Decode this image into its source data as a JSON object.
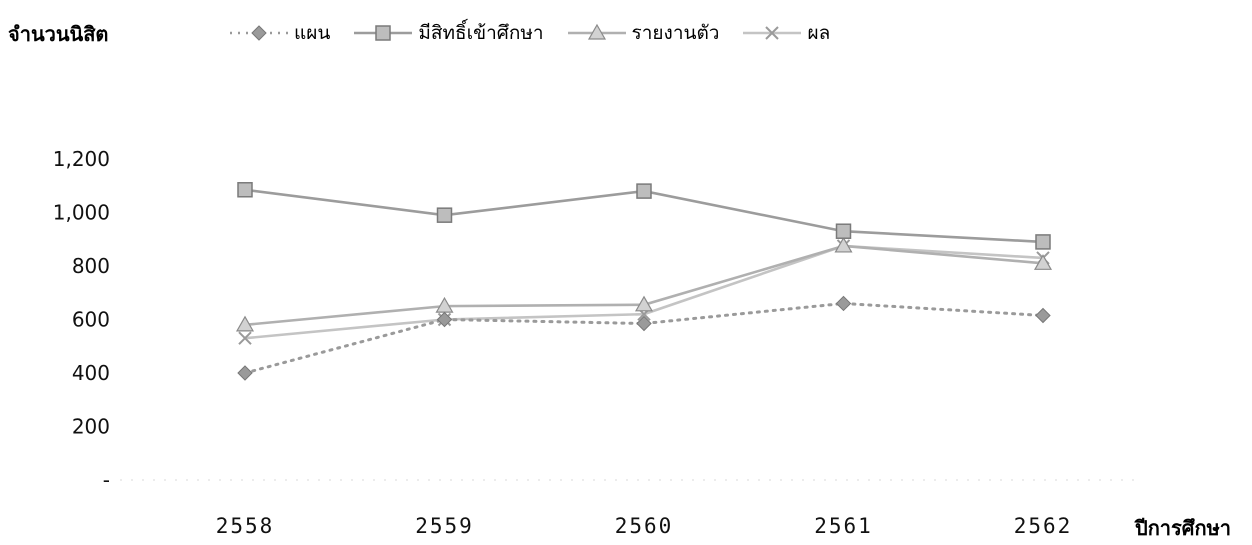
{
  "chart_data": {
    "type": "line",
    "ylabel": "จำนวนนิสิต",
    "xlabel": "ปีการศึกษา",
    "categories": [
      "2558",
      "2559",
      "2560",
      "2561",
      "2562"
    ],
    "ylim": [
      0,
      1200
    ],
    "yticks": [
      0,
      200,
      400,
      600,
      800,
      1000,
      1200
    ],
    "ytick_labels": [
      "-",
      "200",
      "400",
      "600",
      "800",
      "1,000",
      "1,200"
    ],
    "legend_position": "top",
    "grid": false,
    "series": [
      {
        "name": "แผน",
        "values": [
          400,
          600,
          585,
          660,
          615
        ],
        "color": "#9a9a9a",
        "marker": "diamond",
        "dash": "2,6"
      },
      {
        "name": "มีสิทธิ์เข้าศึกษา",
        "values": [
          1085,
          990,
          1080,
          930,
          890
        ],
        "color": "#9c9c9c",
        "marker": "square",
        "dash": ""
      },
      {
        "name": "รายงานตัว",
        "values": [
          580,
          650,
          655,
          875,
          810
        ],
        "color": "#b0b0b0",
        "marker": "triangle",
        "dash": ""
      },
      {
        "name": "ผล",
        "values": [
          530,
          600,
          620,
          875,
          830
        ],
        "color": "#c4c4c4",
        "marker": "x",
        "dash": ""
      }
    ]
  }
}
